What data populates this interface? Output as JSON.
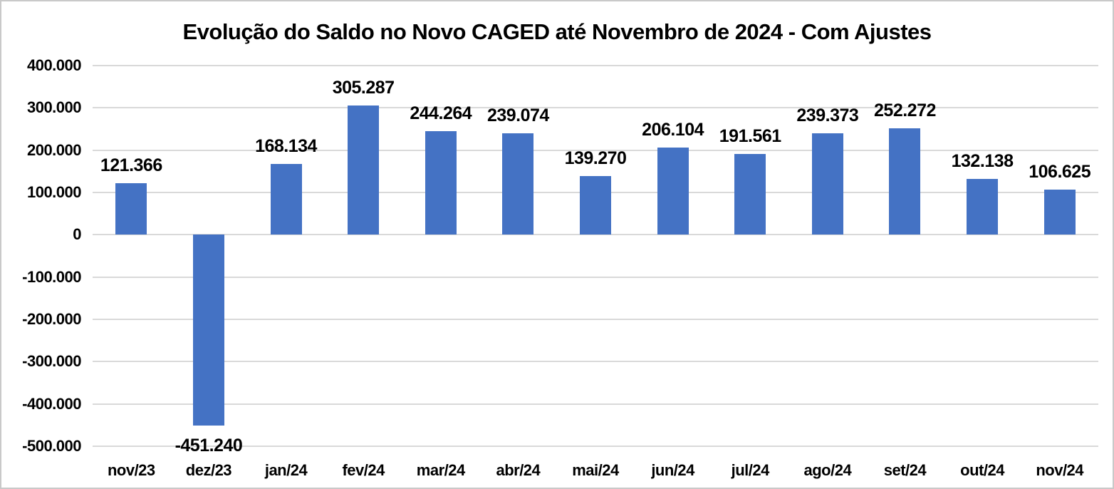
{
  "chart_data": {
    "type": "bar",
    "title": "Evolução do Saldo no Novo CAGED até Novembro de 2024 - Com Ajustes",
    "categories": [
      "nov/23",
      "dez/23",
      "jan/24",
      "fev/24",
      "mar/24",
      "abr/24",
      "mai/24",
      "jun/24",
      "jul/24",
      "ago/24",
      "set/24",
      "out/24",
      "nov/24"
    ],
    "values": [
      121366,
      -451240,
      168134,
      305287,
      244264,
      239074,
      139270,
      206104,
      191561,
      239373,
      252272,
      132138,
      106625
    ],
    "data_labels": [
      "121.366",
      "-451.240",
      "168.134",
      "305.287",
      "244.264",
      "239.074",
      "139.270",
      "206.104",
      "191.561",
      "239.373",
      "252.272",
      "132.138",
      "106.625"
    ],
    "xlabel": "",
    "ylabel": "",
    "ylim": [
      -500000,
      400000
    ],
    "ytick_step": 100000,
    "ytick_labels": [
      "400.000",
      "300.000",
      "200.000",
      "100.000",
      "0",
      "-100.000",
      "-200.000",
      "-300.000",
      "-400.000",
      "-500.000"
    ],
    "grid": true,
    "legend_position": "none",
    "bar_color": "#4472C4",
    "gridline_color": "#D9D9D9",
    "text_color": "#000000",
    "background_color": "#FFFFFF",
    "frame_border_color": "#C9C9C9"
  }
}
